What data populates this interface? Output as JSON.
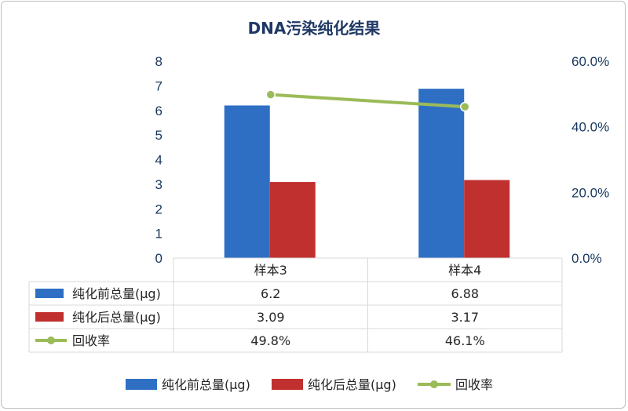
{
  "chart_data": {
    "type": "bar",
    "title": "DNA污染纯化结果",
    "categories": [
      "样本3",
      "样本4"
    ],
    "series": [
      {
        "name": "纯化前总量(μg)",
        "type": "bar",
        "axis": "left",
        "color": "#2e6fc4",
        "values": [
          6.2,
          6.88
        ],
        "labels": [
          "6.2",
          "6.88"
        ]
      },
      {
        "name": "纯化后总量(μg)",
        "type": "bar",
        "axis": "left",
        "color": "#c0302f",
        "values": [
          3.09,
          3.17
        ],
        "labels": [
          "3.09",
          "3.17"
        ]
      },
      {
        "name": "回收率",
        "type": "line",
        "axis": "right",
        "color": "#9bbb59",
        "values": [
          0.498,
          0.461
        ],
        "labels": [
          "49.8%",
          "46.1%"
        ]
      }
    ],
    "y_left": {
      "min": 0,
      "max": 8,
      "ticks": [
        "0",
        "1",
        "2",
        "3",
        "4",
        "5",
        "6",
        "7",
        "8"
      ]
    },
    "y_right": {
      "min": 0,
      "max": 0.6,
      "ticks": [
        "0.0%",
        "20.0%",
        "40.0%",
        "60.0%"
      ]
    },
    "data_table": true,
    "legend_position": "bottom",
    "grid": false
  }
}
